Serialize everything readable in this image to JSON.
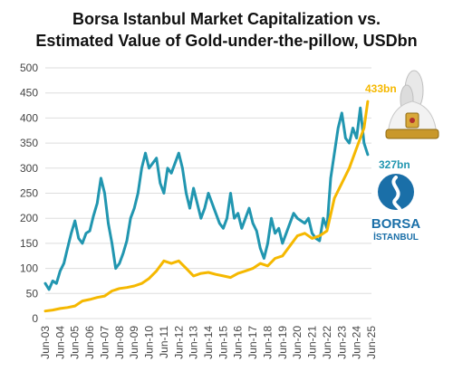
{
  "chart_data": {
    "type": "line",
    "title_line1": "Borsa Istanbul Market Capitalization vs.",
    "title_line2": "Estimated Value of Gold-under-the-pillow, USDbn",
    "ylim": [
      0,
      500
    ],
    "yticks": [
      0,
      50,
      100,
      150,
      200,
      250,
      300,
      350,
      400,
      450,
      500
    ],
    "xticks": [
      "Jun-03",
      "Jun-04",
      "Jun-05",
      "Jun-06",
      "Jun-07",
      "Jun-08",
      "Jun-09",
      "Jun-10",
      "Jun-11",
      "Jun-12",
      "Jun-13",
      "Jun-14",
      "Jun-15",
      "Jun-16",
      "Jun-17",
      "Jun-18",
      "Jun-19",
      "Jun-20",
      "Jun-21",
      "Jun-22",
      "Jun-23",
      "Jun-24",
      "Jun-25"
    ],
    "xlim": [
      2003.5,
      2025.5
    ],
    "annotations": {
      "gold_end": "433bn",
      "market_end": "327bn"
    },
    "colors": {
      "market": "#2196b0",
      "gold": "#f5b800"
    },
    "logo": {
      "line1": "BORSA",
      "line2": "İSTANBUL"
    },
    "series": [
      {
        "key": "market",
        "x": [
          2003.5,
          2003.75,
          2004.0,
          2004.25,
          2004.5,
          2004.75,
          2005.0,
          2005.25,
          2005.5,
          2005.75,
          2006.0,
          2006.25,
          2006.5,
          2006.75,
          2007.0,
          2007.25,
          2007.5,
          2007.75,
          2008.0,
          2008.25,
          2008.5,
          2008.75,
          2009.0,
          2009.25,
          2009.5,
          2009.75,
          2010.0,
          2010.25,
          2010.5,
          2010.75,
          2011.0,
          2011.25,
          2011.5,
          2011.75,
          2012.0,
          2012.25,
          2012.5,
          2012.75,
          2013.0,
          2013.25,
          2013.5,
          2013.75,
          2014.0,
          2014.25,
          2014.5,
          2014.75,
          2015.0,
          2015.25,
          2015.5,
          2015.75,
          2016.0,
          2016.25,
          2016.5,
          2016.75,
          2017.0,
          2017.25,
          2017.5,
          2017.75,
          2018.0,
          2018.25,
          2018.5,
          2018.75,
          2019.0,
          2019.25,
          2019.5,
          2019.75,
          2020.0,
          2020.25,
          2020.5,
          2020.75,
          2021.0,
          2021.25,
          2021.5,
          2021.75,
          2022.0,
          2022.25,
          2022.5,
          2022.75,
          2023.0,
          2023.25,
          2023.5,
          2023.75,
          2024.0,
          2024.25,
          2024.5,
          2024.75,
          2025.0,
          2025.25
        ],
        "values": [
          70,
          58,
          75,
          70,
          95,
          110,
          140,
          170,
          195,
          160,
          150,
          170,
          175,
          205,
          230,
          280,
          250,
          190,
          150,
          100,
          110,
          130,
          155,
          200,
          220,
          250,
          300,
          330,
          300,
          310,
          320,
          270,
          250,
          300,
          290,
          310,
          330,
          300,
          250,
          220,
          260,
          230,
          200,
          220,
          250,
          230,
          210,
          190,
          180,
          200,
          250,
          200,
          210,
          180,
          200,
          220,
          190,
          175,
          140,
          120,
          150,
          200,
          170,
          180,
          150,
          170,
          190,
          210,
          200,
          195,
          190,
          200,
          170,
          160,
          155,
          200,
          180,
          280,
          330,
          380,
          410,
          360,
          350,
          380,
          360,
          420,
          350,
          327
        ]
      },
      {
        "key": "gold",
        "x": [
          2003.5,
          2004.0,
          2004.5,
          2005.0,
          2005.5,
          2006.0,
          2006.5,
          2007.0,
          2007.5,
          2008.0,
          2008.5,
          2009.0,
          2009.5,
          2010.0,
          2010.5,
          2011.0,
          2011.5,
          2012.0,
          2012.5,
          2013.0,
          2013.5,
          2014.0,
          2014.5,
          2015.0,
          2015.5,
          2016.0,
          2016.5,
          2017.0,
          2017.5,
          2018.0,
          2018.5,
          2019.0,
          2019.5,
          2020.0,
          2020.5,
          2021.0,
          2021.5,
          2022.0,
          2022.5,
          2023.0,
          2023.5,
          2024.0,
          2024.5,
          2025.0,
          2025.25
        ],
        "values": [
          15,
          17,
          20,
          22,
          25,
          35,
          38,
          42,
          45,
          55,
          60,
          62,
          65,
          70,
          80,
          95,
          115,
          110,
          115,
          100,
          85,
          90,
          92,
          88,
          85,
          82,
          90,
          95,
          100,
          110,
          105,
          120,
          125,
          145,
          165,
          170,
          160,
          165,
          175,
          240,
          270,
          300,
          340,
          380,
          433
        ]
      }
    ]
  }
}
